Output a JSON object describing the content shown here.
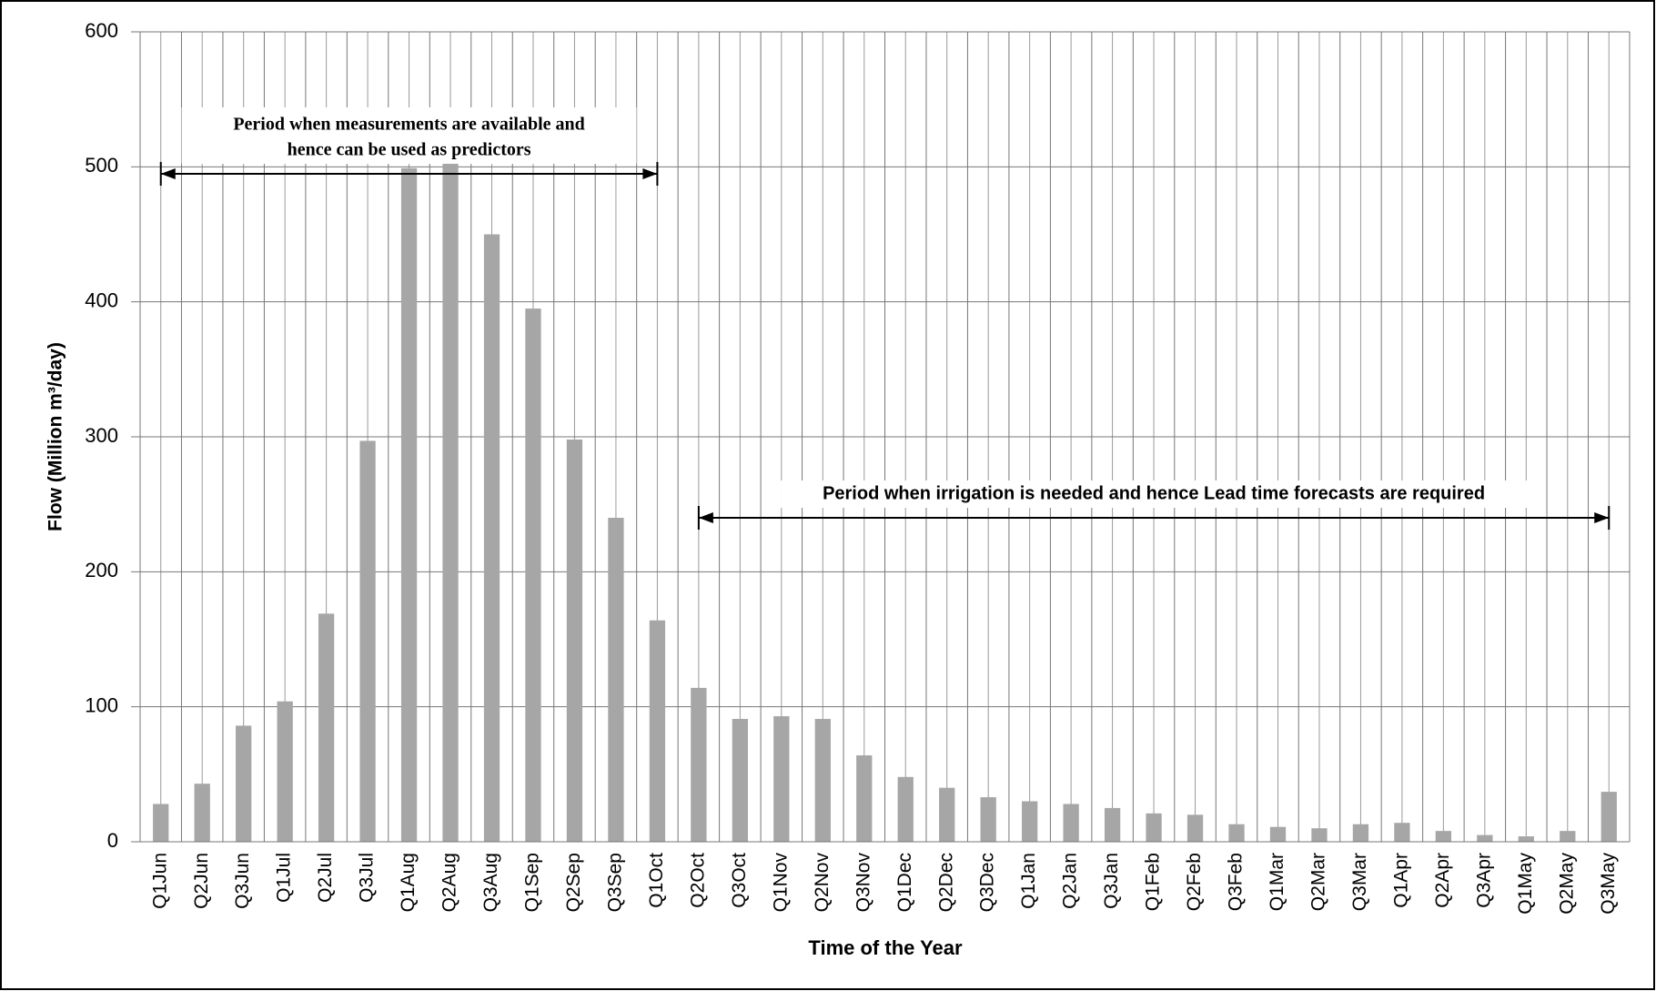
{
  "chart_data": {
    "type": "bar",
    "y_label": "Flow (Million m³/day)",
    "x_label": "Time of the Year",
    "categories": [
      "Q1Jun",
      "Q2Jun",
      "Q3Jun",
      "Q1Jul",
      "Q2Jul",
      "Q3Jul",
      "Q1Aug",
      "Q2Aug",
      "Q3Aug",
      "Q1Sep",
      "Q2Sep",
      "Q3Sep",
      "Q1Oct",
      "Q2Oct",
      "Q3Oct",
      "Q1Nov",
      "Q2Nov",
      "Q3Nov",
      "Q1Dec",
      "Q2Dec",
      "Q3Dec",
      "Q1Jan",
      "Q2Jan",
      "Q3Jan",
      "Q1Feb",
      "Q2Feb",
      "Q3Feb",
      "Q1Mar",
      "Q2Mar",
      "Q3Mar",
      "Q1Apr",
      "Q2Apr",
      "Q3Apr",
      "Q1May",
      "Q2May",
      "Q3May"
    ],
    "values": [
      28,
      43,
      86,
      104,
      169,
      297,
      499,
      505,
      450,
      395,
      298,
      240,
      164,
      114,
      91,
      93,
      91,
      64,
      48,
      40,
      33,
      30,
      28,
      25,
      21,
      20,
      13,
      11,
      10,
      13,
      14,
      8,
      5,
      4,
      8,
      37
    ],
    "color": "#a6a6a6",
    "ylim": [
      0,
      600
    ],
    "yticks": [
      0,
      100,
      200,
      300,
      400,
      500,
      600
    ],
    "grid": true,
    "annotations": [
      [
        "Period when measurements are available and",
        "hence can be used as predictors"
      ],
      [
        "Period when irrigation is needed and hence Lead time forecasts are required"
      ]
    ]
  }
}
